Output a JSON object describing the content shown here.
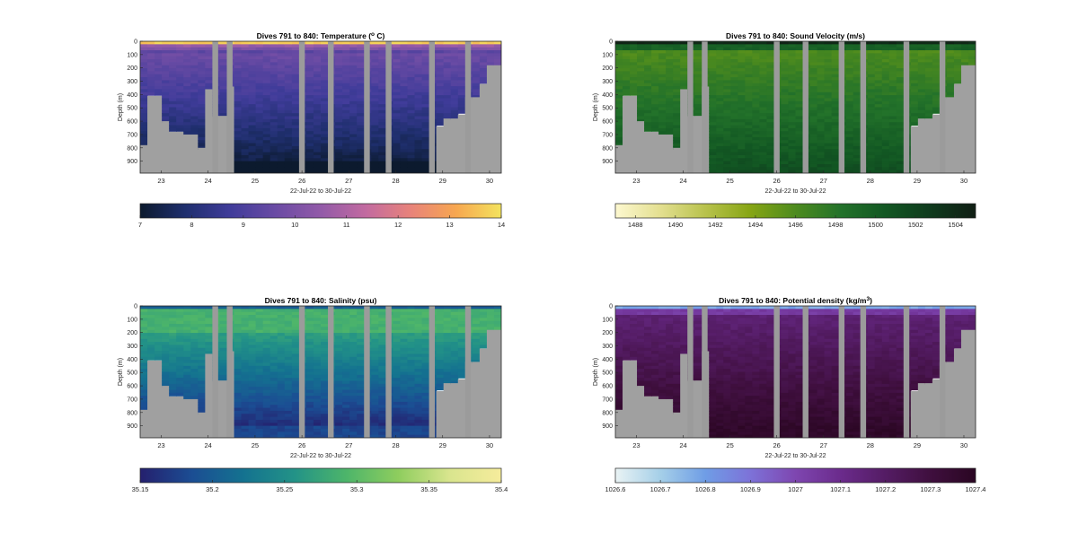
{
  "figure": {
    "background": "#ffffff"
  },
  "shared": {
    "xlabel": "22-Jul-22 to 30-Jul-22",
    "ylabel": "Depth (m)",
    "x_ticks": [
      "23",
      "24",
      "25",
      "26",
      "27",
      "28",
      "29",
      "30"
    ],
    "y_ticks": [
      "0",
      "100",
      "200",
      "300",
      "400",
      "500",
      "600",
      "700",
      "800",
      "900"
    ],
    "ylim": [
      0,
      990
    ],
    "xlim": [
      22.55,
      30.25
    ],
    "seabed_color": "#a0a0a0",
    "gap_color": "#9b9b9b"
  },
  "chart_data": [
    {
      "type": "heatmap",
      "title_pre": "Dives 791 to 840: Temperature (",
      "title_sup": "o",
      "title_post": " C)",
      "colorbar_ticks": [
        "7",
        "8",
        "9",
        "10",
        "11",
        "12",
        "13",
        "14"
      ],
      "clim": [
        7,
        14
      ],
      "colormap": [
        "#0c1a2e",
        "#1f2f6e",
        "#403c9a",
        "#6a4ba4",
        "#925aa8",
        "#c26aa0",
        "#e8837a",
        "#f7a750",
        "#f3e35e"
      ]
    },
    {
      "type": "heatmap",
      "title_pre": "Dives 791 to 840: Sound Velocity (m/s)",
      "title_sup": "",
      "title_post": "",
      "colorbar_ticks": [
        "1488",
        "1490",
        "1492",
        "1494",
        "1496",
        "1498",
        "1500",
        "1502",
        "1504"
      ],
      "clim": [
        1487,
        1505
      ],
      "colormap": [
        "#fdf8d0",
        "#e3df90",
        "#b8c24c",
        "#86a514",
        "#4d8b1e",
        "#23722a",
        "#125723",
        "#0f3a1d",
        "#101e14"
      ]
    },
    {
      "type": "heatmap",
      "title_pre": "Dives 791 to 840: Salinity (psu)",
      "title_sup": "",
      "title_post": "",
      "colorbar_ticks": [
        "35.15",
        "35.2",
        "35.25",
        "35.3",
        "35.35",
        "35.4"
      ],
      "clim": [
        35.15,
        35.4
      ],
      "colormap": [
        "#25206e",
        "#1b4d93",
        "#147290",
        "#239387",
        "#4db56a",
        "#8ecd5e",
        "#d9e58e",
        "#f6ec9c"
      ]
    },
    {
      "type": "heatmap",
      "title_pre": "Dives 791 to 840: Potential density (kg/m",
      "title_sup": "3",
      "title_post": ")",
      "colorbar_ticks": [
        "1026.6",
        "1026.7",
        "1026.8",
        "1026.9",
        "1027",
        "1027.1",
        "1027.2",
        "1027.3",
        "1027.4"
      ],
      "clim": [
        1026.6,
        1027.4
      ],
      "colormap": [
        "#e9f3f4",
        "#a5cfe8",
        "#6f9de6",
        "#7d72d8",
        "#7e46b0",
        "#6b2b8c",
        "#541c64",
        "#3f0f3e",
        "#2a0622"
      ]
    }
  ]
}
